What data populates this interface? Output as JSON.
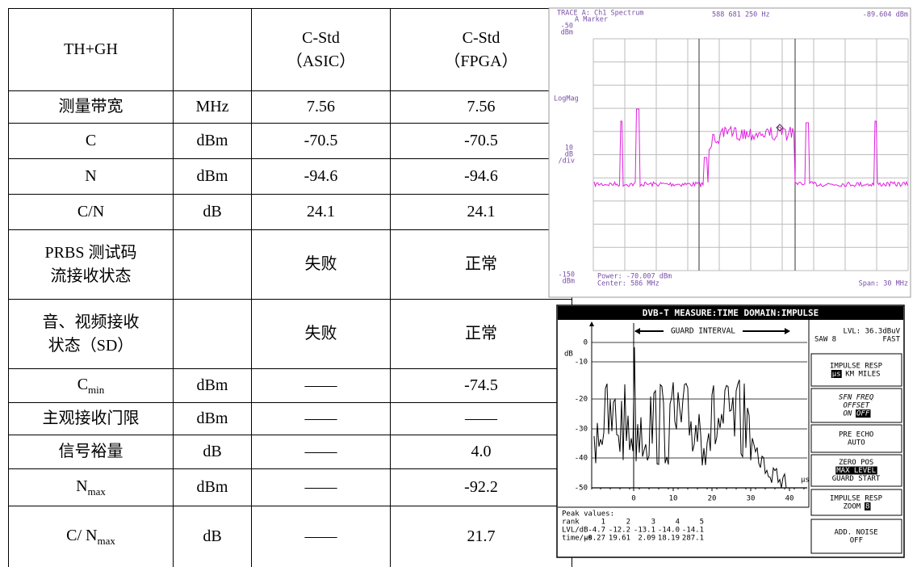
{
  "table": {
    "header": [
      "TH+GH",
      null,
      [
        "C-Std",
        "（ASIC）"
      ],
      [
        "C-Std",
        "（FPGA）"
      ]
    ],
    "rows": [
      [
        "测量带宽",
        "MHz",
        "7.56",
        "7.56"
      ],
      [
        "C",
        "dBm",
        "-70.5",
        "-70.5"
      ],
      [
        "N",
        "dBm",
        "-94.6",
        "-94.6"
      ],
      [
        "C/N",
        "dB",
        "24.1",
        "24.1"
      ],
      [
        [
          "PRBS 测试码",
          "流接收状态"
        ],
        null,
        "失败",
        "正常"
      ],
      [
        [
          "音、视频接收",
          "状态（SD）"
        ],
        null,
        "失败",
        "正常"
      ],
      [
        {
          "main": "C",
          "sub": "min"
        },
        "dBm",
        "——",
        "-74.5"
      ],
      [
        "主观接收门限",
        "dBm",
        "——",
        "——"
      ],
      [
        "信号裕量",
        "dB",
        "——",
        "4.0"
      ],
      [
        {
          "main": "N",
          "sub": "max"
        },
        "dBm",
        "——",
        "-92.2"
      ],
      [
        {
          "main": "C/ N",
          "sub": "max"
        },
        "dB",
        "——",
        "21.7"
      ]
    ]
  },
  "spectrum": {
    "trace": "TRACE A: Ch1 Spectrum",
    "marker": "A Marker",
    "marker_freq": "588 681 250 Hz",
    "marker_level": "-89.604 dBm",
    "top_ref": [
      "-50",
      "dBm"
    ],
    "scale_mode": "LogMag",
    "scale_div": [
      "10",
      "dB",
      "/div"
    ],
    "bottom_ref": [
      "-150",
      "dBm"
    ],
    "power": "Power: -70.007 dBm",
    "center": "Center: 586 MHz",
    "span": "Span: 30 MHz"
  },
  "impulse": {
    "title": "DVB-T MEASURE:TIME DOMAIN:IMPULSE",
    "guard_interval": "GUARD INTERVAL",
    "y_unit": "dB",
    "y_tick_labels": [
      "0",
      "-10",
      "-20",
      "-30",
      "-40",
      "-50"
    ],
    "x_tick_labels": [
      "0",
      "10",
      "20",
      "30",
      "40"
    ],
    "x_unit": "µs",
    "level": {
      "lvl": "LVL: 36.3dBuV",
      "saw": "SAW 8",
      "mode": "FAST"
    },
    "menu": [
      [
        [
          {
            "t": "IMPULSE RESP"
          }
        ],
        [
          {
            "t": "µs",
            "inv": true
          },
          {
            "t": "KM MILES"
          }
        ]
      ],
      [
        [
          {
            "t": "SFN FREQ",
            "italic": true
          }
        ],
        [
          {
            "t": "OFFSET",
            "italic": true
          }
        ],
        [
          {
            "t": "ON",
            "italic": true
          },
          {
            "t": "OFF",
            "inv": true,
            "italic": true
          }
        ]
      ],
      [
        [
          {
            "t": "PRE ECHO"
          }
        ],
        [
          {
            "t": "AUTO"
          }
        ]
      ],
      [
        [
          {
            "t": "ZERO POS"
          }
        ],
        [
          {
            "t": "MAX LEVEL",
            "inv": true
          }
        ],
        [
          {
            "t": "GUARD START"
          }
        ]
      ],
      [
        [
          {
            "t": "IMPULSE RESP"
          }
        ],
        [
          {
            "t": "ZOOM"
          },
          {
            "t": "8",
            "inv": true
          }
        ]
      ],
      [
        [
          {
            "t": "ADD. NOISE"
          }
        ],
        [
          {
            "t": "OFF"
          }
        ]
      ]
    ],
    "peaks": {
      "heading": "Peak values:",
      "rows": [
        [
          "rank",
          "1",
          "2",
          "3",
          "4",
          "5"
        ],
        [
          "LVL/dB",
          "-4.7",
          "-12.2",
          "-13.1",
          "-14.0",
          "-14.1"
        ],
        [
          "time/µs",
          "-0.27",
          "19.61",
          "2.09",
          "18.19",
          "287.1"
        ]
      ]
    }
  }
}
